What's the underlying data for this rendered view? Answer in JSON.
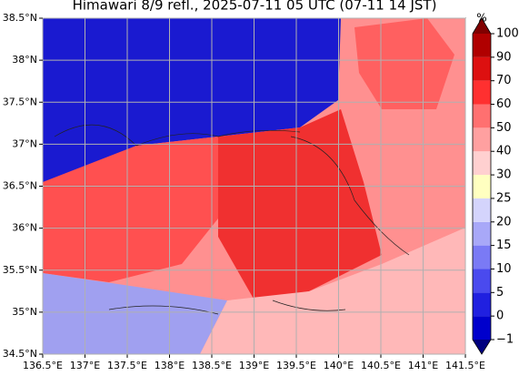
{
  "map": {
    "title": "Himawari 8/9 refl., 2025-07-11 05 UTC (07-11 14 JST)",
    "xlim": [
      136.5,
      141.5
    ],
    "ylim": [
      34.5,
      38.5
    ],
    "xticks": [
      {
        "value": 136.5,
        "label": "136.5°E"
      },
      {
        "value": 137,
        "label": "137°E"
      },
      {
        "value": 137.5,
        "label": "137.5°E"
      },
      {
        "value": 138,
        "label": "138°E"
      },
      {
        "value": 138.5,
        "label": "138.5°E"
      },
      {
        "value": 139,
        "label": "139°E"
      },
      {
        "value": 139.5,
        "label": "139.5°E"
      },
      {
        "value": 140,
        "label": "140°E"
      },
      {
        "value": 140.5,
        "label": "140.5°E"
      },
      {
        "value": 141,
        "label": "141°E"
      },
      {
        "value": 141.5,
        "label": "141.5°E"
      }
    ],
    "yticks": [
      {
        "value": 34.5,
        "label": "34.5°N"
      },
      {
        "value": 35,
        "label": "35°N"
      },
      {
        "value": 35.5,
        "label": "35.5°N"
      },
      {
        "value": 36,
        "label": "36°N"
      },
      {
        "value": 36.5,
        "label": "36.5°N"
      },
      {
        "value": 37,
        "label": "37°N"
      },
      {
        "value": 37.5,
        "label": "37.5°N"
      },
      {
        "value": 38,
        "label": "38°N"
      },
      {
        "value": 38.5,
        "label": "38.5°N"
      }
    ],
    "grid": true,
    "colorbar": {
      "label": "%",
      "ticks": [
        {
          "value": -1,
          "label": "−1"
        },
        0,
        5,
        10,
        15,
        20,
        25,
        30,
        40,
        50,
        60,
        70,
        90,
        100
      ],
      "colors": [
        "#00007f",
        "#0000cc",
        "#2020e0",
        "#4a4aee",
        "#7a7af5",
        "#a8a8f8",
        "#d4d4fc",
        "#ffffc0",
        "#ffd0d0",
        "#ffa0a0",
        "#ff7070",
        "#ff3030",
        "#dd1010",
        "#b00000",
        "#800000"
      ]
    }
  }
}
